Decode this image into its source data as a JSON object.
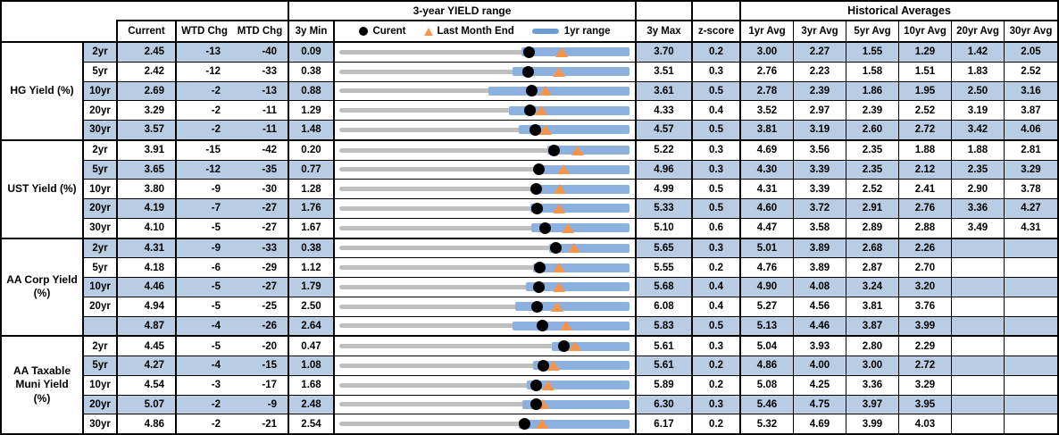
{
  "header": {
    "chart_title": "3-year YIELD range",
    "historical_title": "Historical Averages",
    "col_current": "Current",
    "col_wtd": "WTD Chg",
    "col_mtd": "MTD Chg",
    "col_3y_min": "3y Min",
    "col_3y_max": "3y Max",
    "col_zscore": "z-score",
    "avg_cols": [
      "1yr Avg",
      "3yr Avg",
      "5yr Avg",
      "10yr Avg",
      "20yr Avg",
      "30yr Avg"
    ],
    "legend": {
      "current": "Curent",
      "last_month_end": "Last Month End",
      "one_yr_range": "1yr range"
    }
  },
  "colors": {
    "row_shade": "#b8cce4",
    "bar": "#8cb1e0",
    "legend_bar": "#6d9bd3",
    "track": "#bfbfbf",
    "triangle": "#f6954a",
    "dot": "#000000"
  },
  "chart_data": {
    "type": "bullet-range-table",
    "note": "Each row is a bullet chart scaled from min_3y (left) to max_3y (right); black dot = current yield, orange triangle = last month end (current - MTD chg bps), blue bar = 1yr range (estimated low; high equals 3y max).",
    "sections": [
      {
        "label": "HG Yield (%)",
        "label_lines": [
          "HG Yield (%)"
        ],
        "rows": [
          {
            "tenor": "2yr",
            "current": "2.45",
            "wtd_chg": "-13",
            "mtd_chg": "-40",
            "min_3y": "0.09",
            "max_3y": "3.70",
            "z_score": "0.2",
            "avgs": [
              "3.00",
              "2.27",
              "1.55",
              "1.29",
              "1.42",
              "2.05"
            ],
            "last_month_end": 2.85,
            "yr_low_1y": 2.35,
            "yr_high_1y": 3.7
          },
          {
            "tenor": "5yr",
            "current": "2.42",
            "wtd_chg": "-12",
            "mtd_chg": "-33",
            "min_3y": "0.38",
            "max_3y": "3.51",
            "z_score": "0.3",
            "avgs": [
              "2.76",
              "2.23",
              "1.58",
              "1.51",
              "1.83",
              "2.52"
            ],
            "last_month_end": 2.75,
            "yr_low_1y": 2.25,
            "yr_high_1y": 3.51
          },
          {
            "tenor": "10yr",
            "current": "2.69",
            "wtd_chg": "-2",
            "mtd_chg": "-13",
            "min_3y": "0.88",
            "max_3y": "3.61",
            "z_score": "0.5",
            "avgs": [
              "2.78",
              "2.39",
              "1.86",
              "1.95",
              "2.50",
              "3.16"
            ],
            "last_month_end": 2.82,
            "yr_low_1y": 2.28,
            "yr_high_1y": 3.61
          },
          {
            "tenor": "20yr",
            "current": "3.29",
            "wtd_chg": "-2",
            "mtd_chg": "-11",
            "min_3y": "1.29",
            "max_3y": "4.33",
            "z_score": "0.4",
            "avgs": [
              "3.52",
              "2.97",
              "2.39",
              "2.52",
              "3.19",
              "3.87"
            ],
            "last_month_end": 3.4,
            "yr_low_1y": 3.07,
            "yr_high_1y": 4.33
          },
          {
            "tenor": "30yr",
            "current": "3.57",
            "wtd_chg": "-2",
            "mtd_chg": "-11",
            "min_3y": "1.48",
            "max_3y": "4.57",
            "z_score": "0.5",
            "avgs": [
              "3.81",
              "3.19",
              "2.60",
              "2.72",
              "3.42",
              "4.06"
            ],
            "last_month_end": 3.68,
            "yr_low_1y": 3.39,
            "yr_high_1y": 4.57
          }
        ]
      },
      {
        "label": "UST Yield (%)",
        "label_lines": [
          "UST Yield (%)"
        ],
        "rows": [
          {
            "tenor": "2yr",
            "current": "3.91",
            "wtd_chg": "-15",
            "mtd_chg": "-42",
            "min_3y": "0.20",
            "max_3y": "5.22",
            "z_score": "0.3",
            "avgs": [
              "4.69",
              "3.56",
              "2.35",
              "1.88",
              "1.88",
              "2.81"
            ],
            "last_month_end": 4.33,
            "yr_low_1y": 3.8,
            "yr_high_1y": 5.22
          },
          {
            "tenor": "5yr",
            "current": "3.65",
            "wtd_chg": "-12",
            "mtd_chg": "-35",
            "min_3y": "0.77",
            "max_3y": "4.96",
            "z_score": "0.3",
            "avgs": [
              "4.30",
              "3.39",
              "2.35",
              "2.12",
              "2.35",
              "3.29"
            ],
            "last_month_end": 4.0,
            "yr_low_1y": 3.61,
            "yr_high_1y": 4.96
          },
          {
            "tenor": "10yr",
            "current": "3.80",
            "wtd_chg": "-9",
            "mtd_chg": "-30",
            "min_3y": "1.28",
            "max_3y": "4.99",
            "z_score": "0.5",
            "avgs": [
              "4.31",
              "3.39",
              "2.52",
              "2.41",
              "2.90",
              "3.78"
            ],
            "last_month_end": 4.1,
            "yr_low_1y": 3.75,
            "yr_high_1y": 4.99
          },
          {
            "tenor": "20yr",
            "current": "4.19",
            "wtd_chg": "-7",
            "mtd_chg": "-27",
            "min_3y": "1.76",
            "max_3y": "5.33",
            "z_score": "0.5",
            "avgs": [
              "4.60",
              "3.72",
              "2.91",
              "2.76",
              "3.36",
              "4.27"
            ],
            "last_month_end": 4.46,
            "yr_low_1y": 4.11,
            "yr_high_1y": 5.33
          },
          {
            "tenor": "30yr",
            "current": "4.10",
            "wtd_chg": "-5",
            "mtd_chg": "-27",
            "min_3y": "1.67",
            "max_3y": "5.10",
            "z_score": "0.6",
            "avgs": [
              "4.47",
              "3.58",
              "2.89",
              "2.88",
              "3.49",
              "4.31"
            ],
            "last_month_end": 4.37,
            "yr_low_1y": 3.94,
            "yr_high_1y": 5.1
          }
        ]
      },
      {
        "label": "AA Corp Yield (%)",
        "label_lines": [
          "AA Corp Yield",
          "(%)"
        ],
        "rows": [
          {
            "tenor": "2yr",
            "current": "4.31",
            "wtd_chg": "-9",
            "mtd_chg": "-33",
            "min_3y": "0.38",
            "max_3y": "5.65",
            "z_score": "0.3",
            "avgs": [
              "5.01",
              "3.89",
              "2.68",
              "2.26",
              "",
              ""
            ],
            "last_month_end": 4.64,
            "yr_low_1y": 4.19,
            "yr_high_1y": 5.65
          },
          {
            "tenor": "5yr",
            "current": "4.18",
            "wtd_chg": "-6",
            "mtd_chg": "-29",
            "min_3y": "1.12",
            "max_3y": "5.55",
            "z_score": "0.2",
            "avgs": [
              "4.76",
              "3.89",
              "2.87",
              "2.70",
              "",
              ""
            ],
            "last_month_end": 4.47,
            "yr_low_1y": 4.08,
            "yr_high_1y": 5.55
          },
          {
            "tenor": "10yr",
            "current": "4.46",
            "wtd_chg": "-5",
            "mtd_chg": "-27",
            "min_3y": "1.79",
            "max_3y": "5.68",
            "z_score": "0.4",
            "avgs": [
              "4.90",
              "4.08",
              "3.24",
              "3.20",
              "",
              ""
            ],
            "last_month_end": 4.73,
            "yr_low_1y": 4.29,
            "yr_high_1y": 5.68
          },
          {
            "tenor": "20yr",
            "current": "4.94",
            "wtd_chg": "-5",
            "mtd_chg": "-25",
            "min_3y": "2.50",
            "max_3y": "6.08",
            "z_score": "0.4",
            "avgs": [
              "5.27",
              "4.56",
              "3.81",
              "3.76",
              "",
              ""
            ],
            "last_month_end": 5.19,
            "yr_low_1y": 4.67,
            "yr_high_1y": 6.08
          },
          {
            "tenor": "",
            "current": "4.87",
            "wtd_chg": "-4",
            "mtd_chg": "-26",
            "min_3y": "2.64",
            "max_3y": "5.83",
            "z_score": "0.5",
            "avgs": [
              "5.13",
              "4.46",
              "3.87",
              "3.99",
              "",
              ""
            ],
            "last_month_end": 5.13,
            "yr_low_1y": 4.54,
            "yr_high_1y": 5.83
          }
        ]
      },
      {
        "label": "AA Taxable Muni Yield (%)",
        "label_lines": [
          "AA Taxable",
          "Muni Yield",
          "(%)"
        ],
        "rows": [
          {
            "tenor": "2yr",
            "current": "4.45",
            "wtd_chg": "-5",
            "mtd_chg": "-20",
            "min_3y": "0.47",
            "max_3y": "5.61",
            "z_score": "0.3",
            "avgs": [
              "5.04",
              "3.93",
              "2.80",
              "2.29",
              "",
              ""
            ],
            "last_month_end": 4.65,
            "yr_low_1y": 4.23,
            "yr_high_1y": 5.61
          },
          {
            "tenor": "5yr",
            "current": "4.27",
            "wtd_chg": "-4",
            "mtd_chg": "-15",
            "min_3y": "1.08",
            "max_3y": "5.61",
            "z_score": "0.2",
            "avgs": [
              "4.86",
              "4.00",
              "3.00",
              "2.72",
              "",
              ""
            ],
            "last_month_end": 4.42,
            "yr_low_1y": 4.1,
            "yr_high_1y": 5.61
          },
          {
            "tenor": "10yr",
            "current": "4.54",
            "wtd_chg": "-3",
            "mtd_chg": "-17",
            "min_3y": "1.68",
            "max_3y": "5.89",
            "z_score": "0.2",
            "avgs": [
              "5.08",
              "4.25",
              "3.36",
              "3.29",
              "",
              ""
            ],
            "last_month_end": 4.71,
            "yr_low_1y": 4.4,
            "yr_high_1y": 5.89
          },
          {
            "tenor": "20yr",
            "current": "5.07",
            "wtd_chg": "-2",
            "mtd_chg": "-9",
            "min_3y": "2.48",
            "max_3y": "6.30",
            "z_score": "0.3",
            "avgs": [
              "5.46",
              "4.75",
              "3.97",
              "3.95",
              "",
              ""
            ],
            "last_month_end": 5.16,
            "yr_low_1y": 4.89,
            "yr_high_1y": 6.3
          },
          {
            "tenor": "30yr",
            "current": "4.86",
            "wtd_chg": "-2",
            "mtd_chg": "-21",
            "min_3y": "2.54",
            "max_3y": "6.17",
            "z_score": "0.2",
            "avgs": [
              "5.32",
              "4.69",
              "3.99",
              "4.03",
              "",
              ""
            ],
            "last_month_end": 5.07,
            "yr_low_1y": 4.78,
            "yr_high_1y": 6.17
          }
        ]
      }
    ]
  }
}
